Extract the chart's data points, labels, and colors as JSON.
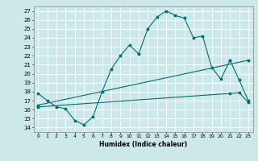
{
  "title": "",
  "xlabel": "Humidex (Indice chaleur)",
  "ylabel": "",
  "xlim": [
    -0.5,
    23.5
  ],
  "ylim": [
    13.5,
    27.5
  ],
  "xticks": [
    0,
    1,
    2,
    3,
    4,
    5,
    6,
    7,
    8,
    9,
    10,
    11,
    12,
    13,
    14,
    15,
    16,
    17,
    18,
    19,
    20,
    21,
    22,
    23
  ],
  "yticks": [
    14,
    15,
    16,
    17,
    18,
    19,
    20,
    21,
    22,
    23,
    24,
    25,
    26,
    27
  ],
  "bg_color": "#cce8e8",
  "line_color": "#007070",
  "grid_color": "#ffffff",
  "lines": [
    {
      "x": [
        0,
        1,
        2,
        3,
        4,
        5,
        6,
        7,
        8,
        9,
        10,
        11,
        12,
        13,
        14,
        15,
        16,
        17,
        18,
        19,
        20,
        21
      ],
      "y": [
        17.8,
        17.0,
        16.3,
        16.1,
        14.8,
        14.3,
        15.2,
        18.0,
        20.5,
        22.0,
        23.2,
        22.2,
        25.0,
        26.3,
        27.0,
        26.5,
        26.2,
        24.0,
        24.2,
        20.7,
        19.4,
        21.5
      ]
    },
    {
      "x": [
        21,
        22,
        23
      ],
      "y": [
        21.5,
        19.3,
        17.0
      ]
    },
    {
      "x": [
        0,
        23
      ],
      "y": [
        16.5,
        21.5
      ]
    },
    {
      "x": [
        0,
        21,
        22,
        23
      ],
      "y": [
        16.3,
        17.8,
        17.9,
        16.8
      ]
    }
  ]
}
